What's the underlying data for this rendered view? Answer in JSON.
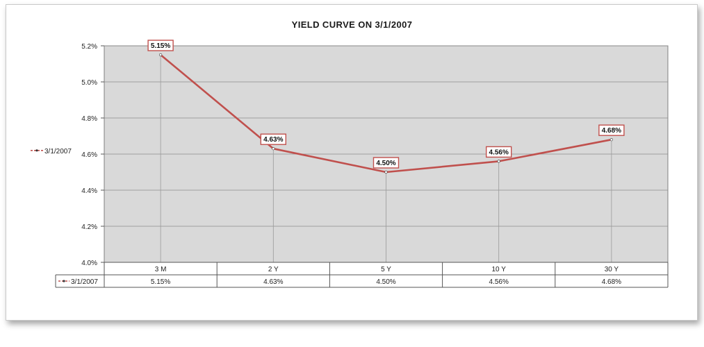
{
  "chart_data": {
    "type": "line",
    "title": "YIELD CURVE ON 3/1/2007",
    "categories": [
      "3 M",
      "2 Y",
      "5 Y",
      "10 Y",
      "30 Y"
    ],
    "series": [
      {
        "name": "3/1/2007",
        "values": [
          5.15,
          4.63,
          4.5,
          4.56,
          4.68
        ],
        "labels": [
          "5.15%",
          "4.63%",
          "4.50%",
          "4.56%",
          "4.68%"
        ],
        "color": "#c0504d"
      }
    ],
    "yticks": [
      "4.0%",
      "4.2%",
      "4.4%",
      "4.6%",
      "4.8%",
      "5.0%",
      "5.2%"
    ],
    "ylim": [
      4.0,
      5.2
    ],
    "grid": true,
    "legend": "left",
    "data_table": true
  },
  "colors": {
    "plot_background": "#d9d9d9",
    "line": "#c0504d",
    "grid": "#8c8c8c"
  }
}
